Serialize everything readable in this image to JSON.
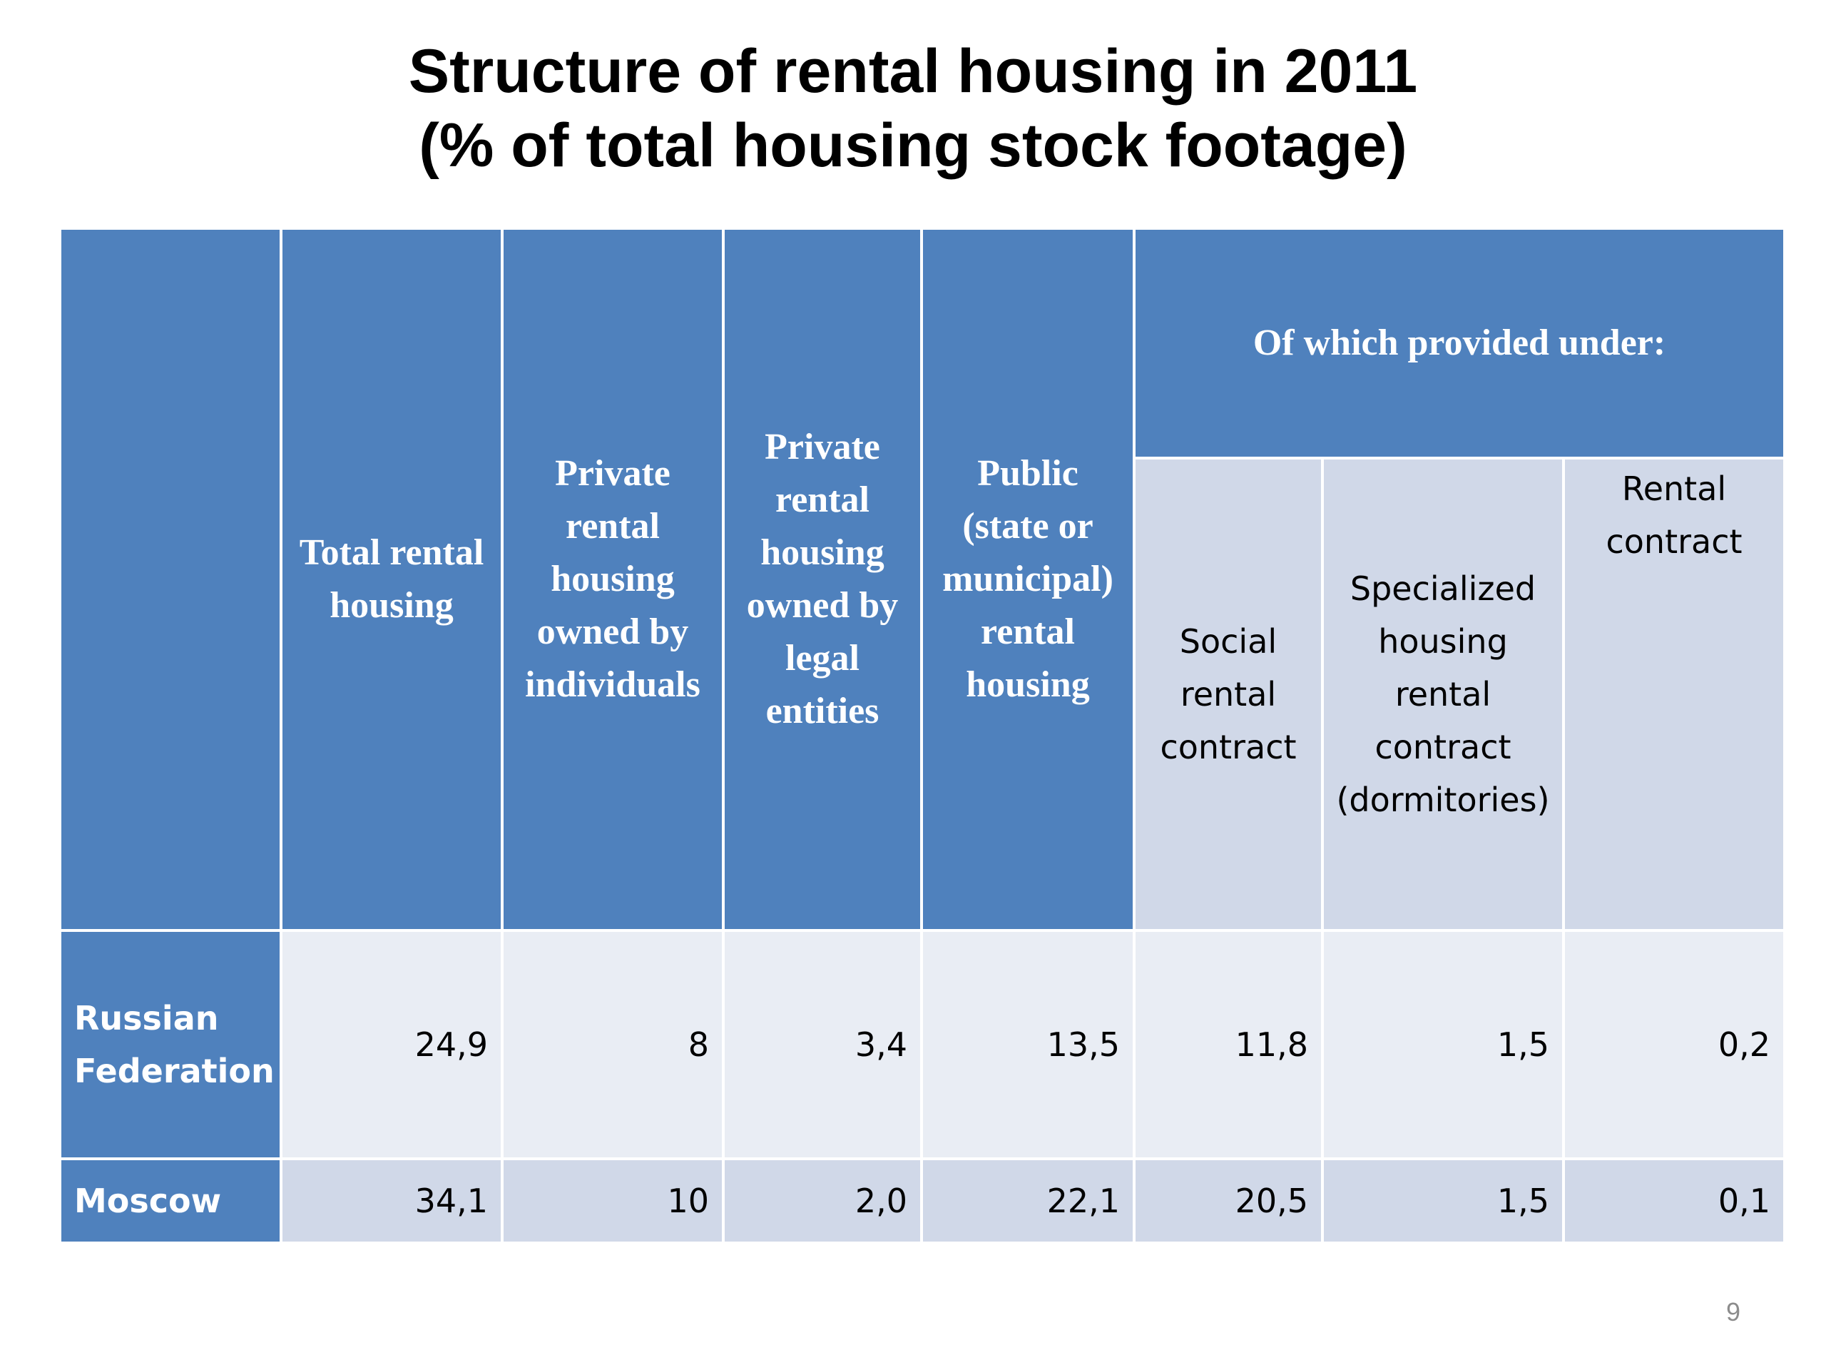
{
  "title": {
    "line1": "Structure of rental housing in 2011",
    "line2": "(% of total housing stock footage)"
  },
  "table": {
    "header": {
      "total_rental": "Total rental housing",
      "private_individuals": "Private rental housing owned by individuals",
      "private_legal": "Private rental housing owned by legal entities",
      "public": "Public (state or municipal) rental housing",
      "group": "Of which provided under:",
      "social": "Social rental contract",
      "specialized": "Specialized housing rental contract (dormitories)",
      "rental_contract": "Rental contract"
    },
    "rows": [
      {
        "label": "Russian Federation",
        "values": [
          "24,9",
          "8",
          "3,4",
          "13,5",
          "11,8",
          "1,5",
          "0,2"
        ]
      },
      {
        "label": "Moscow",
        "values": [
          "34,1",
          "10",
          "2,0",
          "22,1",
          "20,5",
          "1,5",
          "0,1"
        ]
      }
    ]
  },
  "page_number": "9",
  "colors": {
    "header_dark": "#4f81bd",
    "header_light": "#d0d8e8",
    "row_band_1": "#e9edf4",
    "row_band_2": "#d0d8e8"
  }
}
